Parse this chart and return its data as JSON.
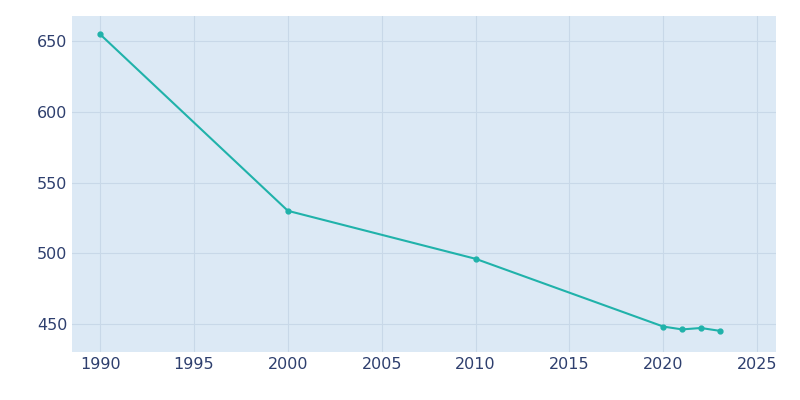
{
  "years": [
    1990,
    2000,
    2010,
    2020,
    2021,
    2022,
    2023
  ],
  "population": [
    655,
    530,
    496,
    448,
    446,
    447,
    445
  ],
  "line_color": "#20b2aa",
  "marker": "o",
  "marker_size": 3.5,
  "line_width": 1.5,
  "background_color": "#dce9f5",
  "outer_background": "#ffffff",
  "grid_color": "#c8d8e8",
  "xlim": [
    1988.5,
    2026
  ],
  "ylim": [
    430,
    668
  ],
  "yticks": [
    450,
    500,
    550,
    600,
    650
  ],
  "xticks": [
    1990,
    1995,
    2000,
    2005,
    2010,
    2015,
    2020,
    2025
  ],
  "tick_label_color": "#2e3f6e",
  "tick_fontsize": 11.5
}
